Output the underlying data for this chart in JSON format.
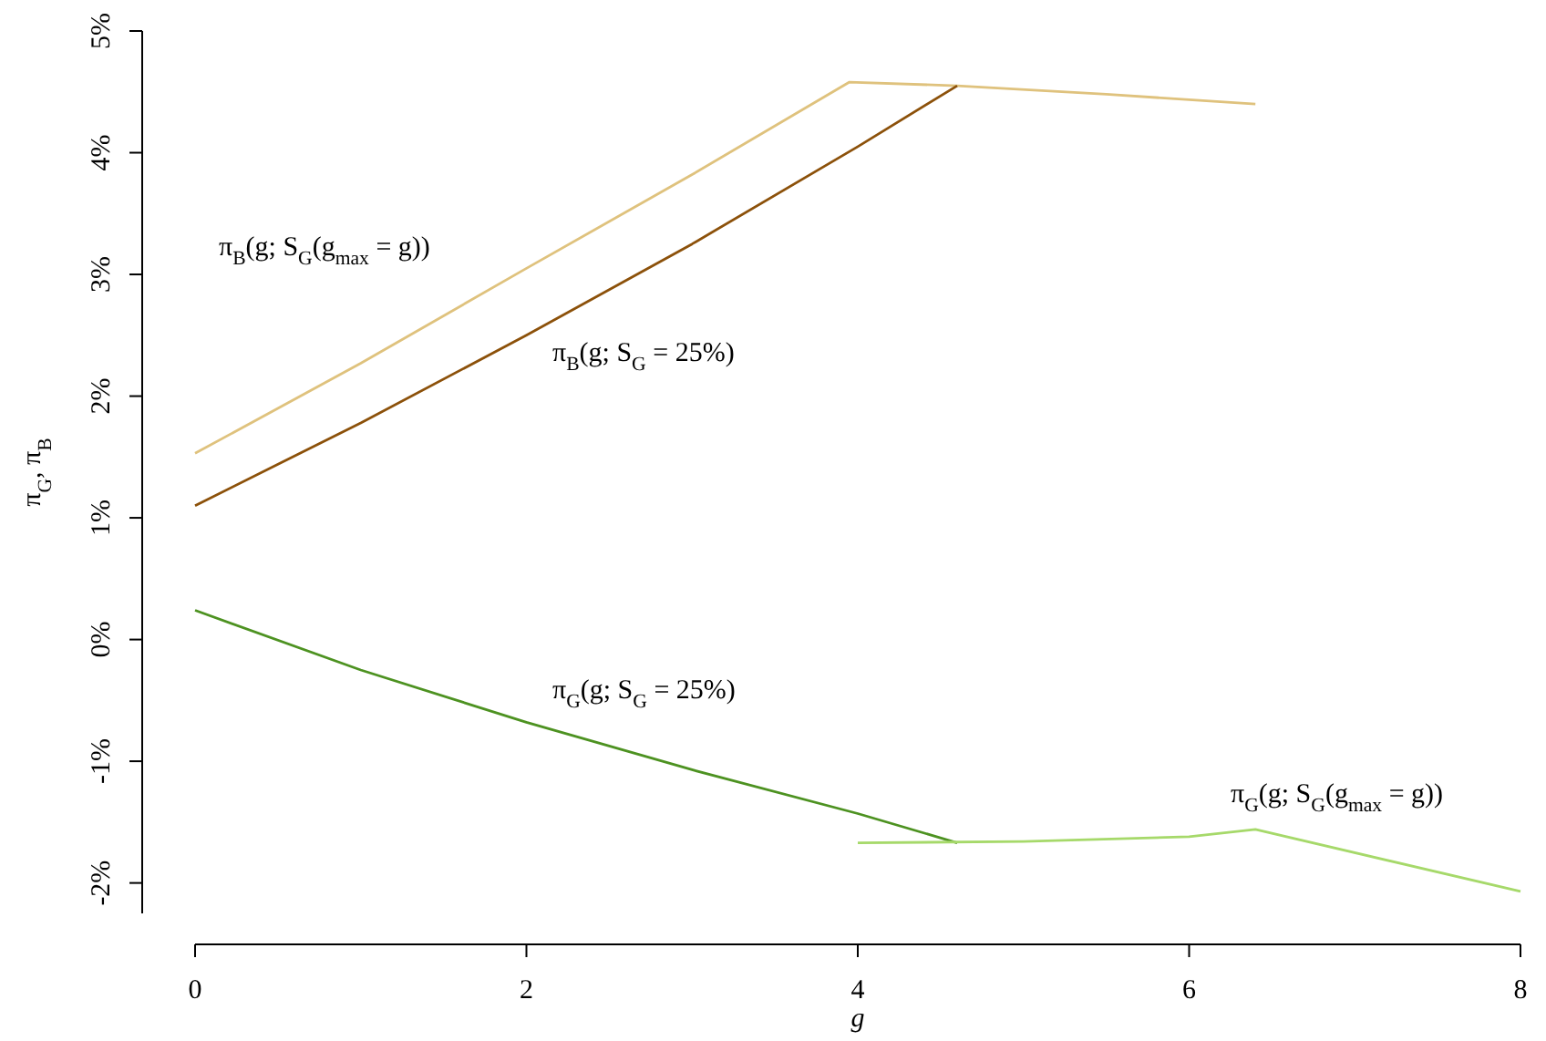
{
  "chart_data": {
    "type": "line",
    "xlabel": "g",
    "ylabel": "π$_{G}$, π$_{B}$",
    "xlim": [
      0,
      8
    ],
    "ylim": [
      -2.25,
      5
    ],
    "xticks": [
      0,
      2,
      4,
      6,
      8
    ],
    "yticks": [
      {
        "value": -2,
        "label": "-2%"
      },
      {
        "value": -1,
        "label": "-1%"
      },
      {
        "value": 0,
        "label": "0%"
      },
      {
        "value": 1,
        "label": "1%"
      },
      {
        "value": 2,
        "label": "2%"
      },
      {
        "value": 3,
        "label": "3%"
      },
      {
        "value": 4,
        "label": "4%"
      },
      {
        "value": 5,
        "label": "5%"
      }
    ],
    "grid": false,
    "marker": "none",
    "line_style": "solid",
    "series": [
      {
        "color": "#dfc27d",
        "x": [
          0,
          1,
          2,
          3,
          3.95,
          4.6,
          5.5,
          6.4
        ],
        "values": [
          1.53,
          2.27,
          3.05,
          3.82,
          4.58,
          4.55,
          4.48,
          4.4
        ]
      },
      {
        "color": "#8c510a",
        "x": [
          0,
          1,
          2,
          3,
          4,
          4.6
        ],
        "values": [
          1.1,
          1.78,
          2.5,
          3.25,
          4.05,
          4.55
        ]
      },
      {
        "color": "#4d9221",
        "x": [
          0,
          1,
          2,
          3,
          4,
          4.6
        ],
        "values": [
          0.24,
          -0.25,
          -0.68,
          -1.07,
          -1.43,
          -1.67
        ]
      },
      {
        "color": "#a6d96a",
        "x": [
          4,
          5,
          6,
          6.4,
          8
        ],
        "values": [
          -1.67,
          -1.66,
          -1.62,
          -1.56,
          -2.07
        ]
      }
    ],
    "annotations": [
      "π$_{B}$(g; S$_{G}$(g$_{max}$ = g))",
      "π$_{B}$(g; S$_{G}$ = 25%)",
      "π$_{G}$(g; S$_{G}$ = 25%)",
      "π$_{G}$(g; S$_{G}$(g$_{max}$ = g))"
    ]
  }
}
